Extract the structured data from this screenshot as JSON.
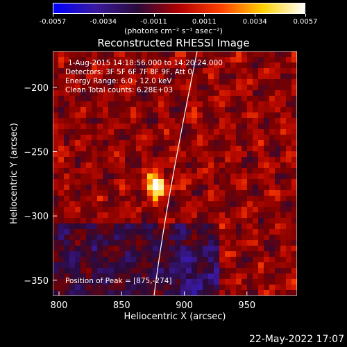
{
  "colorbar": {
    "ticks": [
      "-0.0057",
      "-0.0034",
      "-0.0011",
      "0.0011",
      "0.0034",
      "0.0057"
    ],
    "units": "(photons cm⁻² s⁻¹ asec⁻²)",
    "colors": [
      "#0000ff",
      "#3a1aa0",
      "#2a0a3a",
      "#b00000",
      "#ff4000",
      "#ffd000",
      "#ffffff"
    ]
  },
  "info": {
    "line1": "1-Aug-2015 14:18:56.000 to 14:20:24.000",
    "line2": "Detectors: 3F 5F 6F 7F 8F 9F, Att 0",
    "line3": "Energy Range: 6.0 - 12.0 keV",
    "line4": "Clean     Total counts: 6.28E+03",
    "peak": "Position of Peak = [875,-274]"
  },
  "footer": "22-May-2022 17:07",
  "chart_data": {
    "type": "heatmap",
    "title": "Reconstructed RHESSI Image",
    "xlabel": "Heliocentric X (arcsec)",
    "ylabel": "Heliocentric Y (arcsec)",
    "xlim": [
      795,
      990
    ],
    "ylim": [
      -362,
      -172
    ],
    "xticks": [
      800,
      850,
      900,
      950
    ],
    "yticks": [
      -200,
      -250,
      -300,
      -350
    ],
    "peak": [
      875,
      -274
    ],
    "value_range": [
      -0.0057,
      0.0057
    ]
  }
}
